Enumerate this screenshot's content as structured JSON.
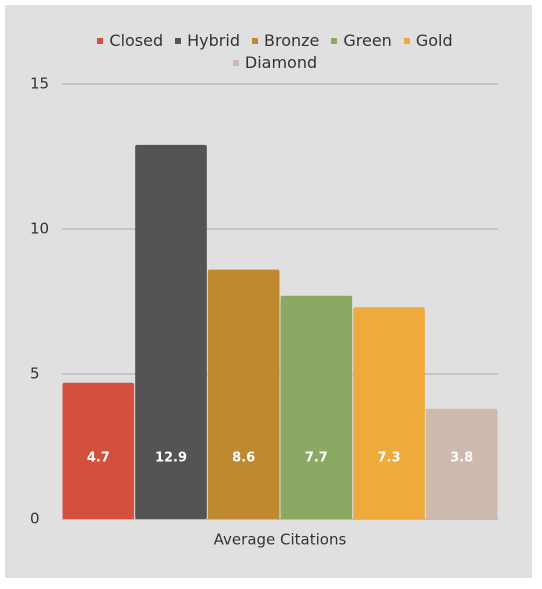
{
  "chart_data": {
    "type": "bar",
    "categories": [
      "Average Citations"
    ],
    "series": [
      {
        "name": "Closed",
        "color": "#d4503e",
        "values": [
          4.7
        ]
      },
      {
        "name": "Hybrid",
        "color": "#545454",
        "values": [
          12.9
        ]
      },
      {
        "name": "Bronze",
        "color": "#bf8a2f",
        "values": [
          8.6
        ]
      },
      {
        "name": "Green",
        "color": "#8aaa63",
        "values": [
          7.7
        ]
      },
      {
        "name": "Gold",
        "color": "#eeaa3b",
        "values": [
          7.3
        ]
      },
      {
        "name": "Diamond",
        "color": "#cdb9ad",
        "values": [
          3.8
        ]
      }
    ],
    "ylim": [
      0,
      15
    ],
    "yticks": [
      0,
      5,
      10,
      15
    ],
    "grid": true,
    "legend": "top"
  }
}
